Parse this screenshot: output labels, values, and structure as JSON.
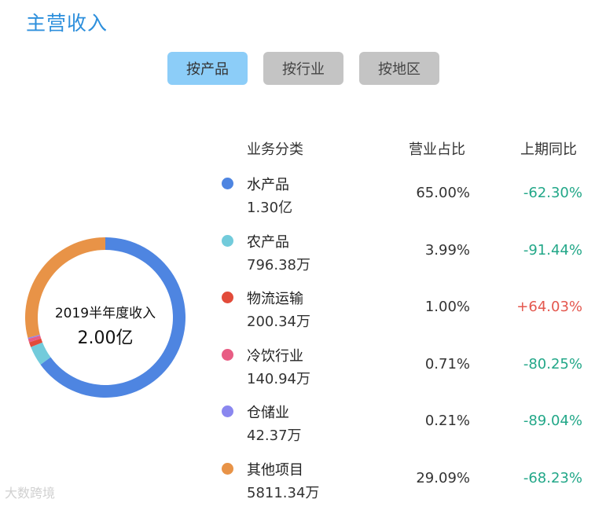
{
  "header": {
    "title": "主营收入"
  },
  "tabs": [
    {
      "label": "按产品",
      "active": true
    },
    {
      "label": "按行业",
      "active": false
    },
    {
      "label": "按地区",
      "active": false
    }
  ],
  "table": {
    "columns": {
      "category": "业务分类",
      "share": "营业占比",
      "yoy": "上期同比"
    },
    "rows": [
      {
        "name": "水产品",
        "amount": "1.30亿",
        "share": "65.00%",
        "yoy": "-62.30%",
        "color": "#4e85e1",
        "trend": "neg"
      },
      {
        "name": "农产品",
        "amount": "796.38万",
        "share": "3.99%",
        "yoy": "-91.44%",
        "color": "#72cbdb",
        "trend": "neg"
      },
      {
        "name": "物流运输",
        "amount": "200.34万",
        "share": "1.00%",
        "yoy": "+64.03%",
        "color": "#e24b3a",
        "trend": "pos"
      },
      {
        "name": "冷饮行业",
        "amount": "140.94万",
        "share": "0.71%",
        "yoy": "-80.25%",
        "color": "#e85d84",
        "trend": "neg"
      },
      {
        "name": "仓储业",
        "amount": "42.37万",
        "share": "0.21%",
        "yoy": "-89.04%",
        "color": "#8a87ef",
        "trend": "neg"
      },
      {
        "name": "其他项目",
        "amount": "5811.34万",
        "share": "29.09%",
        "yoy": "-68.23%",
        "color": "#e89347",
        "trend": "neg"
      }
    ]
  },
  "chart_data": {
    "type": "pie",
    "center_label": "2019半年度收入",
    "center_value": "2.00亿",
    "slices": [
      {
        "label": "水产品",
        "value": 65.0,
        "color": "#4e85e1"
      },
      {
        "label": "农产品",
        "value": 3.99,
        "color": "#72cbdb"
      },
      {
        "label": "物流运输",
        "value": 1.0,
        "color": "#e24b3a"
      },
      {
        "label": "冷饮行业",
        "value": 0.71,
        "color": "#e85d84"
      },
      {
        "label": "仓储业",
        "value": 0.21,
        "color": "#8a87ef"
      },
      {
        "label": "其他项目",
        "value": 29.09,
        "color": "#e89347"
      }
    ]
  },
  "watermark": "大数跨境"
}
